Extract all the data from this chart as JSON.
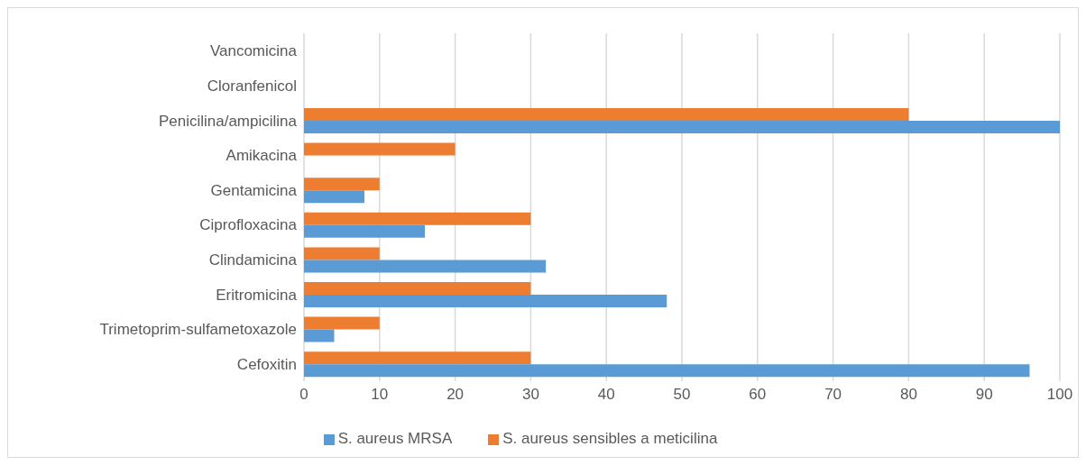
{
  "chart_data": {
    "type": "bar",
    "orientation": "horizontal",
    "categories": [
      "Vancomicina",
      "Cloranfenicol",
      "Penicilina/ampicilina",
      "Amikacina",
      "Gentamicina",
      "Ciprofloxacina",
      "Clindamicina",
      "Eritromicina",
      "Trimetoprim-sulfametoxazole",
      "Cefoxitin"
    ],
    "series": [
      {
        "name": "S. aureus sensibles a meticilina",
        "color": "#ed7d31",
        "values": [
          0,
          0,
          80,
          20,
          10,
          30,
          10,
          30,
          10,
          30
        ]
      },
      {
        "name": "S. aureus MRSA",
        "color": "#5b9bd5",
        "values": [
          0,
          0,
          100,
          0,
          8,
          16,
          32,
          48,
          4,
          96
        ]
      }
    ],
    "xlim": [
      0,
      100
    ],
    "xticks": [
      0,
      10,
      20,
      30,
      40,
      50,
      60,
      70,
      80,
      90,
      100
    ],
    "grid": "x",
    "legend": "bottom"
  }
}
